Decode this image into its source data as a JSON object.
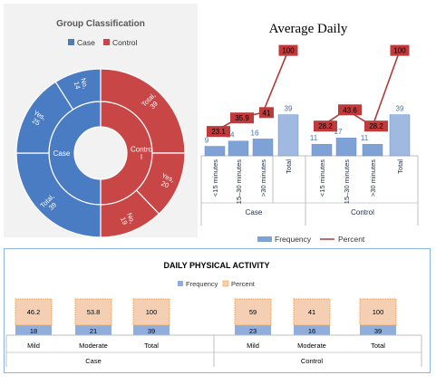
{
  "colors": {
    "case": "#4a7cc4",
    "control": "#c84646",
    "bar": "#7ea1d6",
    "bar_light": "#9fb9e0",
    "line": "#b03a3a",
    "label_box": "#c0393b",
    "axis_text": "#1f2d4a",
    "percent_box": "#f5cfb4",
    "percent_border": "#f2a33a",
    "frequency_box": "#8faedb"
  },
  "chart_data": [
    {
      "type": "sunburst",
      "title": "Group Classification",
      "legend": [
        "Case",
        "Control"
      ],
      "inner": [
        {
          "label": "Case",
          "value": 39,
          "group": "Case"
        },
        {
          "label": "Control",
          "value": 39,
          "group": "Control"
        }
      ],
      "outer": [
        {
          "label": "Total, 39",
          "value": 39,
          "group": "Control"
        },
        {
          "label": "Yes, 20",
          "value": 20,
          "group": "Control"
        },
        {
          "label": "No, 19",
          "value": 19,
          "group": "Control"
        },
        {
          "label": "Total, 39",
          "value": 39,
          "group": "Case"
        },
        {
          "label": "Yes, 25",
          "value": 25,
          "group": "Case"
        },
        {
          "label": "No, 14",
          "value": 14,
          "group": "Case"
        }
      ],
      "legend_position": "top"
    },
    {
      "type": "bar+line",
      "title": "Average Daily",
      "groups": [
        "Case",
        "Control"
      ],
      "categories": [
        "<15 minutes",
        "15–30 minutes",
        ">30 minutes",
        "Total",
        "<15 minutes",
        "15–30 minutes",
        ">30 minutes",
        "Total"
      ],
      "series": [
        {
          "name": "Frequency",
          "type": "bar",
          "values": [
            9,
            14,
            16,
            39,
            11,
            17,
            11,
            39
          ]
        },
        {
          "name": "Percent",
          "type": "line",
          "values": [
            23.1,
            35.9,
            41,
            100,
            28.2,
            43.6,
            28.2,
            100
          ]
        }
      ],
      "ylim": [
        0,
        110
      ],
      "legend_position": "bottom"
    },
    {
      "type": "stacked-bar",
      "title": "DAILY PHYSICAL ACTIVITY",
      "groups": [
        "Case",
        "Control"
      ],
      "categories": [
        "Mild",
        "Moderate",
        "Total",
        "Mild",
        "Moderate",
        "Total"
      ],
      "series": [
        {
          "name": "Frequency",
          "values": [
            18,
            21,
            39,
            23,
            16,
            39
          ]
        },
        {
          "name": "Percent",
          "values": [
            46.2,
            53.8,
            100,
            59,
            41,
            100
          ]
        }
      ],
      "legend_position": "top"
    }
  ]
}
